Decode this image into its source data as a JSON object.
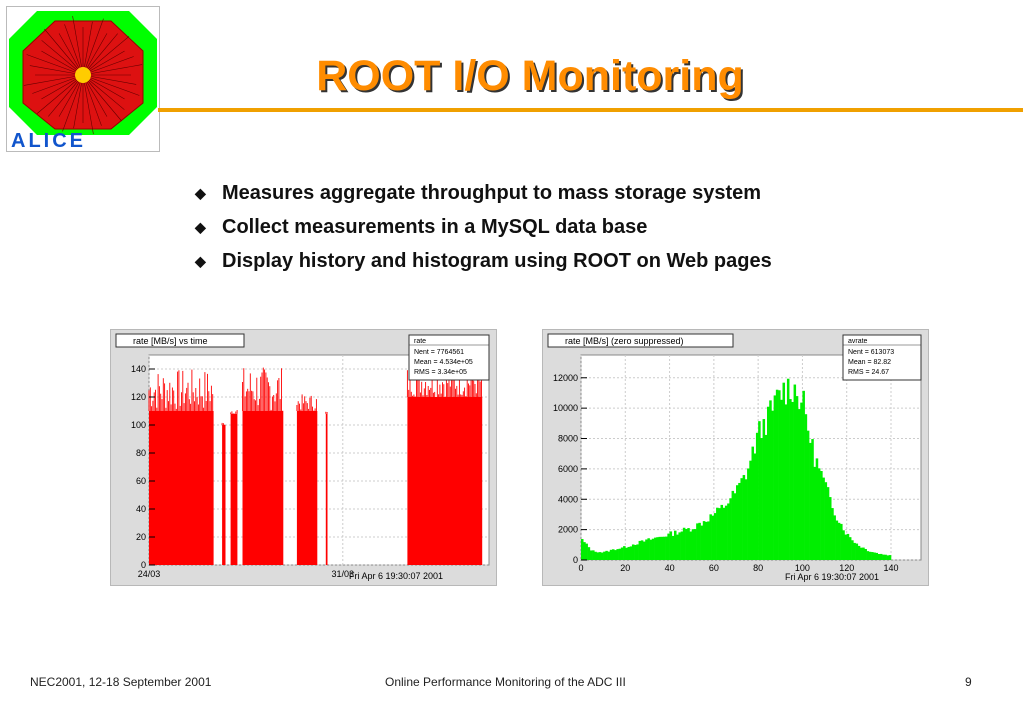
{
  "slide": {
    "title": "ROOT I/O Monitoring",
    "bullets": [
      "Measures aggregate throughput to mass storage system",
      "Collect measurements in a MySQL data base",
      "Display history and histogram using ROOT on Web pages"
    ],
    "footer_left": "NEC2001, 12-18 September 2001",
    "footer_center": "Online Performance Monitoring of the ADC III",
    "page_number": "9",
    "logo_text": "ALICE"
  },
  "colors": {
    "title": "#ff8c00",
    "rule": "#f0a000",
    "rate_fill": "#ff0000",
    "hist_fill": "#00ee00"
  },
  "chart_data": [
    {
      "type": "bar",
      "title": "rate [MB/s] vs time",
      "stats": {
        "name": "rate",
        "lines": [
          "Nent = 7764561",
          "Mean  = 4.534e+05",
          "RMS   = 3.34e+05"
        ]
      },
      "ylim": [
        0,
        150
      ],
      "yticks": [
        0,
        20,
        40,
        60,
        80,
        100,
        120,
        140
      ],
      "xticks": [
        {
          "label": "24/03",
          "pos": 0.0
        },
        {
          "label": "31/03",
          "pos": 0.57
        }
      ],
      "timestamp": "Fri Apr  6 19:30:07 2001",
      "segments": [
        {
          "start": 0.0,
          "end": 0.19,
          "level": 110,
          "peak": 140
        },
        {
          "start": 0.215,
          "end": 0.225,
          "level": 100,
          "peak": 102
        },
        {
          "start": 0.24,
          "end": 0.26,
          "level": 108,
          "peak": 112
        },
        {
          "start": 0.275,
          "end": 0.395,
          "level": 110,
          "peak": 142
        },
        {
          "start": 0.435,
          "end": 0.495,
          "level": 110,
          "peak": 122
        },
        {
          "start": 0.52,
          "end": 0.525,
          "level": 108,
          "peak": 110
        },
        {
          "start": 0.76,
          "end": 0.98,
          "level": 120,
          "peak": 142
        }
      ]
    },
    {
      "type": "bar",
      "title": "rate [MB/s] (zero suppressed)",
      "stats": {
        "name": "avrate",
        "lines": [
          "Nent = 613073",
          "Mean  =  82.82",
          "RMS   =  24.67"
        ]
      },
      "xlim": [
        0,
        140
      ],
      "ylim": [
        0,
        13500
      ],
      "xticks": [
        0,
        20,
        40,
        60,
        80,
        100,
        120,
        140
      ],
      "yticks": [
        0,
        2000,
        4000,
        6000,
        8000,
        10000,
        12000
      ],
      "timestamp": "Fri Apr  6 19:30:07 2001",
      "x": [
        0,
        5,
        10,
        15,
        20,
        25,
        30,
        35,
        40,
        45,
        50,
        55,
        60,
        65,
        70,
        75,
        80,
        85,
        90,
        95,
        100,
        105,
        110,
        115,
        120,
        125,
        130,
        135,
        140
      ],
      "y": [
        1400,
        600,
        500,
        700,
        850,
        1100,
        1300,
        1500,
        1700,
        1900,
        2100,
        2500,
        3000,
        3600,
        4500,
        5800,
        8300,
        9500,
        11000,
        11500,
        10500,
        7000,
        5000,
        3000,
        1700,
        1000,
        600,
        400,
        300
      ]
    }
  ]
}
